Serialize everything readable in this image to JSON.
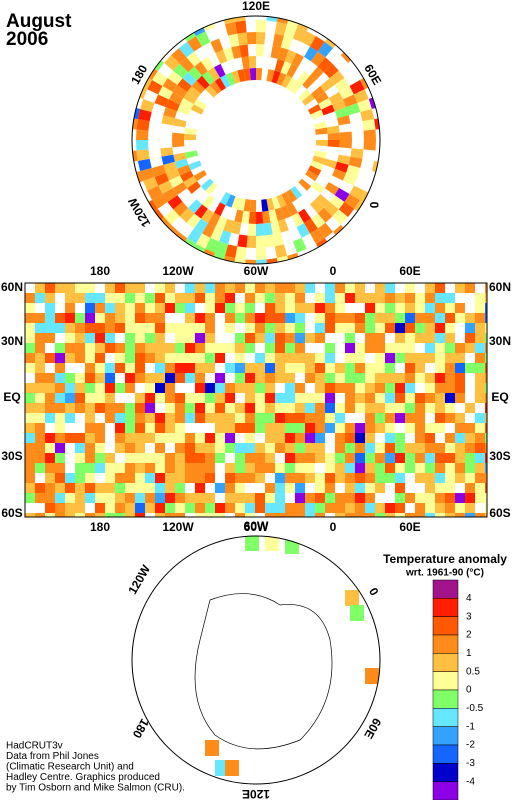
{
  "title": [
    "August",
    "2006"
  ],
  "north_map": {
    "labels": [
      "120E",
      "180",
      "60E",
      "120W",
      "0"
    ]
  },
  "main_map": {
    "lat_labels": [
      "60N",
      "30N",
      "EQ",
      "30S",
      "60S"
    ],
    "lon_labels": [
      "180",
      "120W",
      "60W",
      "0",
      "60E"
    ]
  },
  "south_map": {
    "labels": [
      "120W",
      "60W",
      "0",
      "180",
      "60E",
      "120E"
    ]
  },
  "legend": {
    "title": [
      "Temperature anomaly",
      "wrt. 1961-90  (°C)"
    ],
    "labels": [
      4,
      3,
      2,
      1,
      0.5,
      0,
      -0.5,
      -1,
      -2,
      -3,
      -4
    ],
    "colors": [
      "#a3138c",
      "#ff1f00",
      "#ff5a00",
      "#ff8c1a",
      "#ffbf40",
      "#ffff99",
      "#80ff66",
      "#66e6ff",
      "#33a3ff",
      "#1466ff",
      "#0000cc",
      "#8c00e6"
    ]
  },
  "credits": [
    "HadCRUT3v",
    "Data from Phil Jones",
    "(Climatic Research Unit) and",
    "Hadley Centre.  Graphics produced",
    "by Tim Osborn and Mike Salmon (CRU)."
  ]
}
